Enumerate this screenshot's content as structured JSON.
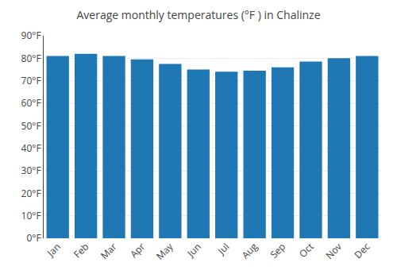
{
  "chart_data": {
    "type": "bar",
    "title": "Average monthly temperatures (°F ) in Chalinze",
    "categories": [
      "Jan",
      "Feb",
      "Mar",
      "Apr",
      "May",
      "Jun",
      "Jul",
      "Aug",
      "Sep",
      "Oct",
      "Nov",
      "Dec"
    ],
    "values": [
      81,
      82,
      81,
      79.5,
      77.5,
      75,
      74,
      74.5,
      76,
      78.5,
      80,
      81
    ],
    "ylim": [
      0,
      90
    ],
    "yticks": [
      {
        "value": 0,
        "label": "0°F"
      },
      {
        "value": 10,
        "label": "10°F"
      },
      {
        "value": 20,
        "label": "20°F"
      },
      {
        "value": 30,
        "label": "30°F"
      },
      {
        "value": 40,
        "label": "40°F"
      },
      {
        "value": 50,
        "label": "50°F"
      },
      {
        "value": 60,
        "label": "60°F"
      },
      {
        "value": 70,
        "label": "70°F"
      },
      {
        "value": 80,
        "label": "80°F"
      },
      {
        "value": 90,
        "label": "90°F"
      }
    ],
    "grid": true
  }
}
